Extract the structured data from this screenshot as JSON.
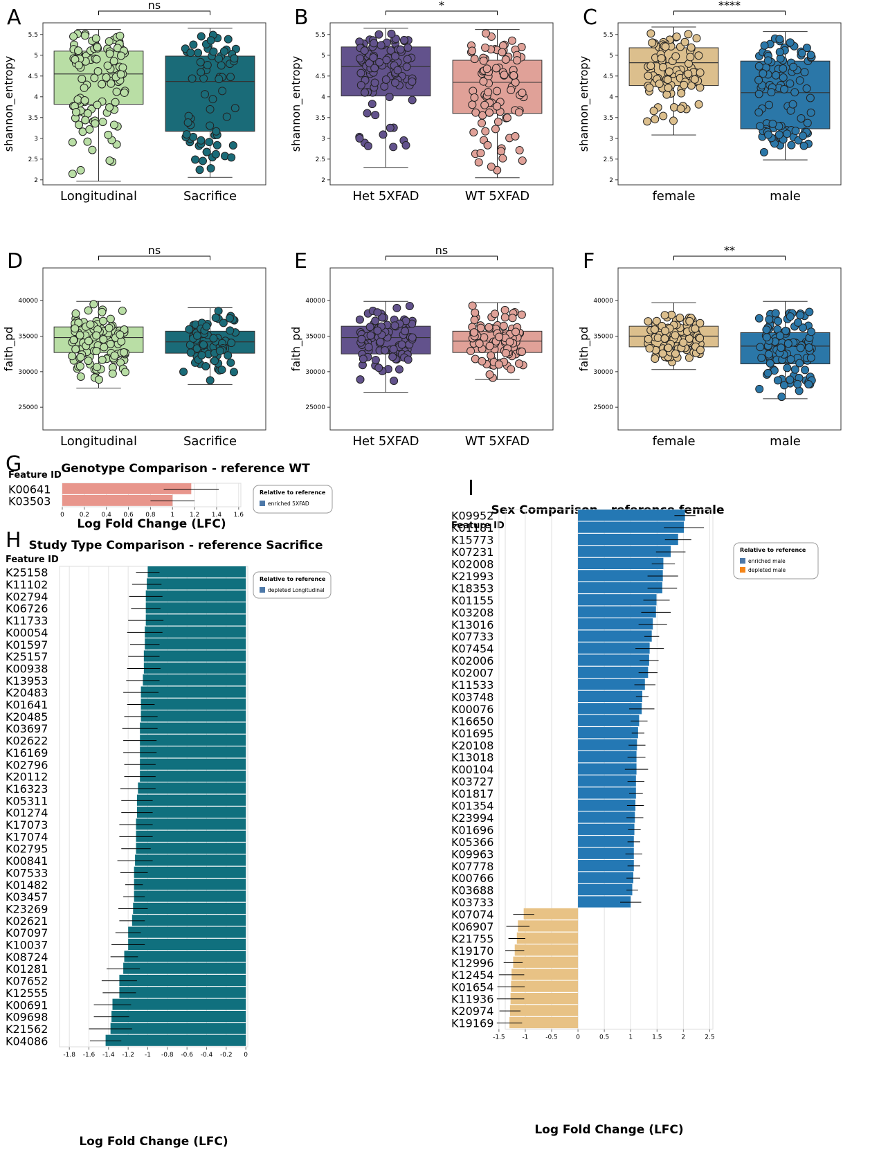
{
  "colors": {
    "longitudinal": "#b9deA5",
    "sacrifice": "#1a6b78",
    "het": "#62528c",
    "wt": "#e0a198",
    "female": "#dcbf8d",
    "male": "#2b77a8",
    "enriched_5xfad": "#e8968c",
    "study_bar": "#10707e",
    "enriched_male": "#2478b4",
    "depleted_male": "#e8c285",
    "legend_enriched_5xfad": "#4c78a8",
    "legend_depleted_long": "#4c78a8",
    "legend_enriched_male": "#4c78a8",
    "legend_depleted_male": "#f58518"
  },
  "chart_data": [
    {
      "panel": "A",
      "type": "box",
      "ylabel": "shannon_entropy",
      "significance": "ns",
      "categories": [
        "Longitudinal",
        "Sacrifice"
      ],
      "yticks": [
        2.0,
        2.5,
        3.0,
        3.5,
        4.0,
        4.5,
        5.0,
        5.5
      ],
      "ylim": [
        1.88,
        5.78
      ],
      "boxes": [
        {
          "name": "Longitudinal",
          "q1": 3.82,
          "median": 4.55,
          "q3": 5.1,
          "whisker_low": 1.97,
          "whisker_high": 5.62,
          "color_key": "longitudinal",
          "n": 110
        },
        {
          "name": "Sacrifice",
          "q1": 3.17,
          "median": 4.37,
          "q3": 4.98,
          "whisker_low": 2.06,
          "whisker_high": 5.65,
          "color_key": "sacrifice",
          "n": 70
        }
      ]
    },
    {
      "panel": "B",
      "type": "box",
      "ylabel": "shannon_entropy",
      "significance": "*",
      "categories": [
        "Het 5XFAD",
        "WT 5XFAD"
      ],
      "yticks": [
        2.0,
        2.5,
        3.0,
        3.5,
        4.0,
        4.5,
        5.0,
        5.5
      ],
      "ylim": [
        1.88,
        5.78
      ],
      "boxes": [
        {
          "name": "Het 5XFAD",
          "q1": 4.02,
          "median": 4.73,
          "q3": 5.2,
          "whisker_low": 2.3,
          "whisker_high": 5.65,
          "color_key": "het",
          "n": 90
        },
        {
          "name": "WT 5XFAD",
          "q1": 3.6,
          "median": 4.35,
          "q3": 4.88,
          "whisker_low": 2.05,
          "whisker_high": 5.62,
          "color_key": "wt",
          "n": 90
        }
      ]
    },
    {
      "panel": "C",
      "type": "box",
      "ylabel": "shannon_entropy",
      "significance": "****",
      "categories": [
        "female",
        "male"
      ],
      "yticks": [
        2.0,
        2.5,
        3.0,
        3.5,
        4.0,
        4.5,
        5.0,
        5.5
      ],
      "ylim": [
        1.88,
        5.78
      ],
      "boxes": [
        {
          "name": "female",
          "q1": 4.27,
          "median": 4.82,
          "q3": 5.18,
          "whisker_low": 3.08,
          "whisker_high": 5.68,
          "color_key": "female",
          "n": 90
        },
        {
          "name": "male",
          "q1": 3.23,
          "median": 4.1,
          "q3": 4.86,
          "whisker_low": 2.48,
          "whisker_high": 5.57,
          "color_key": "male",
          "n": 100
        }
      ]
    },
    {
      "panel": "D",
      "type": "box",
      "ylabel": "faith_pd",
      "significance": "ns",
      "categories": [
        "Longitudinal",
        "Sacrifice"
      ],
      "yticks": [
        25000,
        30000,
        35000,
        40000
      ],
      "ylim": [
        21800,
        44600
      ],
      "boxes": [
        {
          "name": "Longitudinal",
          "q1": 32700,
          "median": 34800,
          "q3": 36300,
          "whisker_low": 27700,
          "whisker_high": 39900,
          "color_key": "longitudinal",
          "n": 110
        },
        {
          "name": "Sacrifice",
          "q1": 32600,
          "median": 34200,
          "q3": 35700,
          "whisker_low": 28200,
          "whisker_high": 39000,
          "color_key": "sacrifice",
          "n": 70
        }
      ]
    },
    {
      "panel": "E",
      "type": "box",
      "ylabel": "faith_pd",
      "significance": "ns",
      "categories": [
        "Het 5XFAD",
        "WT 5XFAD"
      ],
      "yticks": [
        25000,
        30000,
        35000,
        40000
      ],
      "ylim": [
        21800,
        44600
      ],
      "boxes": [
        {
          "name": "Het 5XFAD",
          "q1": 32500,
          "median": 34800,
          "q3": 36400,
          "whisker_low": 27100,
          "whisker_high": 39900,
          "color_key": "het",
          "n": 90
        },
        {
          "name": "WT 5XFAD",
          "q1": 32700,
          "median": 34300,
          "q3": 35700,
          "whisker_low": 28900,
          "whisker_high": 39700,
          "color_key": "wt",
          "n": 90
        }
      ]
    },
    {
      "panel": "F",
      "type": "box",
      "ylabel": "faith_pd",
      "significance": "**",
      "categories": [
        "female",
        "male"
      ],
      "yticks": [
        25000,
        30000,
        35000,
        40000
      ],
      "ylim": [
        21800,
        44600
      ],
      "boxes": [
        {
          "name": "female",
          "q1": 33500,
          "median": 35000,
          "q3": 36400,
          "whisker_low": 30300,
          "whisker_high": 39700,
          "color_key": "female",
          "n": 90
        },
        {
          "name": "male",
          "q1": 31100,
          "median": 33600,
          "q3": 35500,
          "whisker_low": 26200,
          "whisker_high": 39900,
          "color_key": "male",
          "n": 100
        }
      ]
    },
    {
      "panel": "G",
      "type": "bar",
      "title": "Genotype Comparison - reference WT",
      "ylabel": "Feature ID",
      "xlabel": "Log Fold Change (LFC)",
      "xticks": [
        0.0,
        0.2,
        0.4,
        0.6,
        0.8,
        1.0,
        1.2,
        1.4,
        1.6
      ],
      "xlim": [
        0,
        1.62
      ],
      "legend_title": "Relative to reference",
      "legend": [
        {
          "label": "enriched 5XFAD",
          "color_key": "legend_enriched_5xfad"
        }
      ],
      "features": [
        "K00641",
        "K03503"
      ],
      "values": [
        1.17,
        1.0
      ],
      "errors": [
        0.25,
        0.2
      ],
      "bar_color_keys": [
        "enriched_5xfad",
        "enriched_5xfad"
      ]
    },
    {
      "panel": "H",
      "type": "bar",
      "title": "Study Type Comparison - reference Sacrifice",
      "ylabel": "Feature ID",
      "xlabel": "Log Fold Change (LFC)",
      "xticks": [
        -1.8,
        -1.6,
        -1.4,
        -1.2,
        -1.0,
        -0.8,
        -0.6,
        -0.4,
        -0.2,
        0.0
      ],
      "xlim": [
        -1.9,
        0.02
      ],
      "legend_title": "Relative to reference",
      "legend": [
        {
          "label": "depleted Longitudinal",
          "color_key": "legend_depleted_long"
        }
      ],
      "features": [
        "K25158",
        "K11102",
        "K02794",
        "K06726",
        "K11733",
        "K00054",
        "K01597",
        "K25157",
        "K00938",
        "K13953",
        "K20483",
        "K01641",
        "K20485",
        "K03697",
        "K02622",
        "K16169",
        "K02796",
        "K20112",
        "K16323",
        "K05311",
        "K01274",
        "K17073",
        "K17074",
        "K02795",
        "K00841",
        "K07533",
        "K01482",
        "K03457",
        "K23269",
        "K02621",
        "K07097",
        "K10037",
        "K08724",
        "K01281",
        "K07652",
        "K12555",
        "K00691",
        "K09698",
        "K21562",
        "K04086"
      ],
      "values": [
        -1.0,
        -1.01,
        -1.02,
        -1.02,
        -1.02,
        -1.03,
        -1.03,
        -1.04,
        -1.04,
        -1.05,
        -1.07,
        -1.07,
        -1.07,
        -1.08,
        -1.08,
        -1.08,
        -1.08,
        -1.08,
        -1.1,
        -1.11,
        -1.11,
        -1.12,
        -1.12,
        -1.12,
        -1.13,
        -1.14,
        -1.14,
        -1.14,
        -1.15,
        -1.16,
        -1.2,
        -1.2,
        -1.24,
        -1.25,
        -1.29,
        -1.29,
        -1.36,
        -1.37,
        -1.38,
        -1.43
      ],
      "errors": [
        0.12,
        0.15,
        0.17,
        0.15,
        0.18,
        0.18,
        0.15,
        0.16,
        0.17,
        0.17,
        0.18,
        0.14,
        0.17,
        0.18,
        0.17,
        0.17,
        0.16,
        0.16,
        0.18,
        0.16,
        0.16,
        0.17,
        0.17,
        0.15,
        0.18,
        0.14,
        0.09,
        0.11,
        0.15,
        0.13,
        0.13,
        0.17,
        0.14,
        0.17,
        0.18,
        0.17,
        0.19,
        0.18,
        0.22,
        0.16
      ],
      "bar_color_key": "study_bar"
    },
    {
      "panel": "I",
      "type": "bar",
      "title": "Sex Comparison - reference female",
      "ylabel": "Feature ID",
      "xlabel": "Log Fold Change (LFC)",
      "xticks": [
        -1.5,
        -1.0,
        -0.5,
        0.0,
        0.5,
        1.0,
        1.5,
        2.0,
        2.5
      ],
      "xlim": [
        -1.38,
        2.56
      ],
      "legend_title": "Relative to reference",
      "legend": [
        {
          "label": "enriched male",
          "color_key": "legend_enriched_male"
        },
        {
          "label": "depleted male",
          "color_key": "legend_depleted_male"
        }
      ],
      "features": [
        "K09952",
        "K01181",
        "K15773",
        "K07231",
        "K02008",
        "K21993",
        "K18353",
        "K01155",
        "K03208",
        "K13016",
        "K07733",
        "K07454",
        "K02006",
        "K02007",
        "K11533",
        "K03748",
        "K00076",
        "K16650",
        "K01695",
        "K20108",
        "K13018",
        "K00104",
        "K03727",
        "K01817",
        "K01354",
        "K23994",
        "K01696",
        "K05366",
        "K09963",
        "K07778",
        "K00766",
        "K03688",
        "K03733",
        "K07074",
        "K06907",
        "K21755",
        "K19170",
        "K12996",
        "K12454",
        "K01654",
        "K11936",
        "K20974",
        "K19169"
      ],
      "values": [
        2.03,
        2.01,
        1.9,
        1.76,
        1.62,
        1.61,
        1.6,
        1.49,
        1.48,
        1.42,
        1.4,
        1.36,
        1.35,
        1.33,
        1.27,
        1.22,
        1.21,
        1.16,
        1.14,
        1.12,
        1.11,
        1.11,
        1.1,
        1.1,
        1.09,
        1.08,
        1.07,
        1.06,
        1.06,
        1.06,
        1.05,
        1.03,
        1.0,
        -1.03,
        -1.14,
        -1.16,
        -1.2,
        -1.23,
        -1.26,
        -1.27,
        -1.28,
        -1.29,
        -1.3
      ],
      "errors": [
        0.2,
        0.38,
        0.25,
        0.28,
        0.22,
        0.29,
        0.28,
        0.25,
        0.28,
        0.27,
        0.14,
        0.27,
        0.18,
        0.18,
        0.2,
        0.12,
        0.24,
        0.16,
        0.12,
        0.16,
        0.17,
        0.22,
        0.16,
        0.13,
        0.16,
        0.16,
        0.12,
        0.12,
        0.16,
        0.12,
        0.13,
        0.11,
        0.2,
        0.2,
        0.22,
        0.16,
        0.18,
        0.18,
        0.24,
        0.26,
        0.26,
        0.2,
        0.24
      ],
      "positive_color_key": "enriched_male",
      "negative_color_key": "depleted_male"
    }
  ]
}
